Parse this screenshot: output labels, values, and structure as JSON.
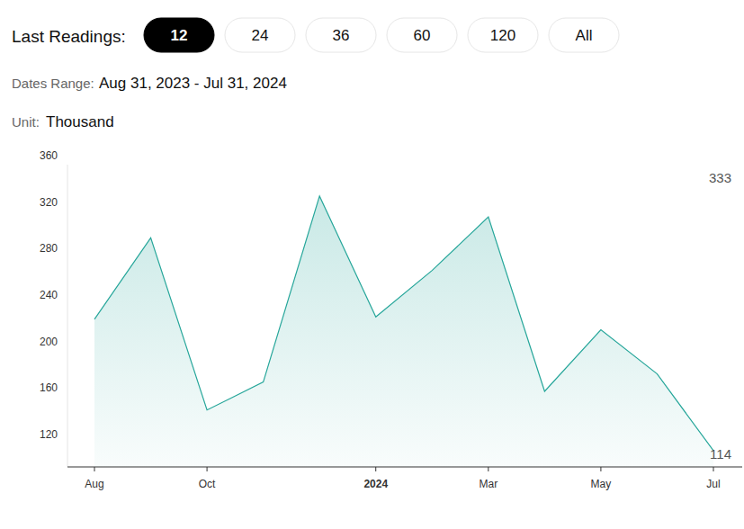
{
  "page": {
    "readings_label": "Last Readings:",
    "buttons": [
      "12",
      "24",
      "36",
      "60",
      "120",
      "All"
    ],
    "active": "12",
    "dates_label": "Dates Range:",
    "dates": "Aug 31, 2023 - Jul 31, 2024",
    "unit_label": "Unit:",
    "unit": "Thousand"
  },
  "chart_data": {
    "type": "line",
    "categories": [
      "Aug",
      null,
      "Oct",
      null,
      null,
      "2024",
      null,
      "Mar",
      null,
      "May",
      null,
      "Jul"
    ],
    "values": [
      227,
      297,
      149,
      173,
      333,
      229,
      269,
      315,
      165,
      218,
      180,
      114
    ],
    "color": "#26a69a",
    "ylim": [
      100,
      360
    ],
    "yticks": [
      120,
      160,
      200,
      240,
      280,
      320,
      360
    ],
    "grid": false,
    "annotations": [
      "333",
      "114"
    ]
  }
}
